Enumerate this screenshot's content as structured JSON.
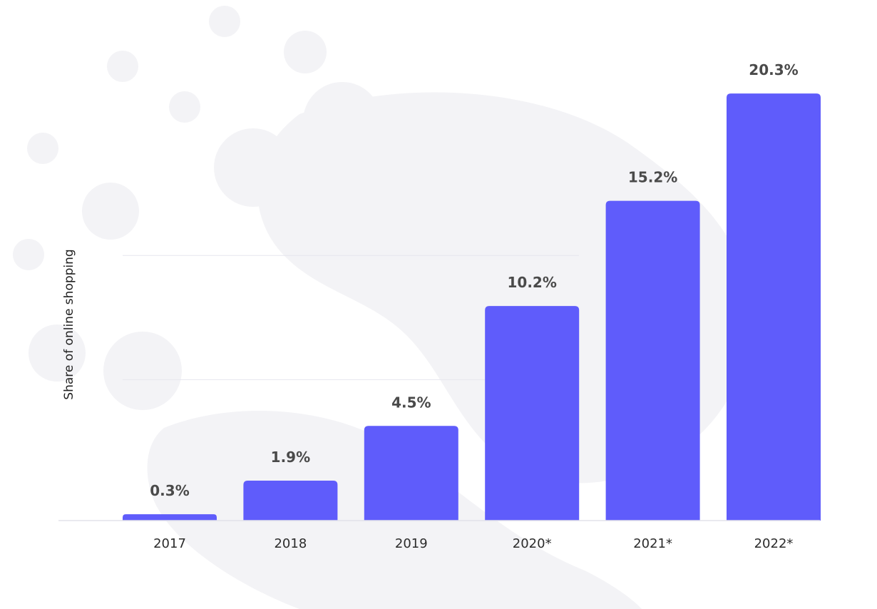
{
  "chart_data": {
    "type": "bar",
    "title": "",
    "xlabel": "",
    "ylabel": "Share of online shopping",
    "categories": [
      "2017",
      "2018",
      "2019",
      "2020*",
      "2021*",
      "2022*"
    ],
    "values": [
      0.3,
      1.9,
      4.5,
      10.2,
      15.2,
      20.3
    ],
    "value_labels": [
      "0.3%",
      "1.9%",
      "4.5%",
      "10.2%",
      "15.2%",
      "20.3%"
    ],
    "unit": "%",
    "ylim": [
      0,
      21
    ],
    "grid": true,
    "colors": {
      "bar": "#5f5cfb",
      "value_label": "#4a4a4a",
      "tick_label": "#2b2b2b",
      "grid": "#e6e6ee"
    }
  }
}
